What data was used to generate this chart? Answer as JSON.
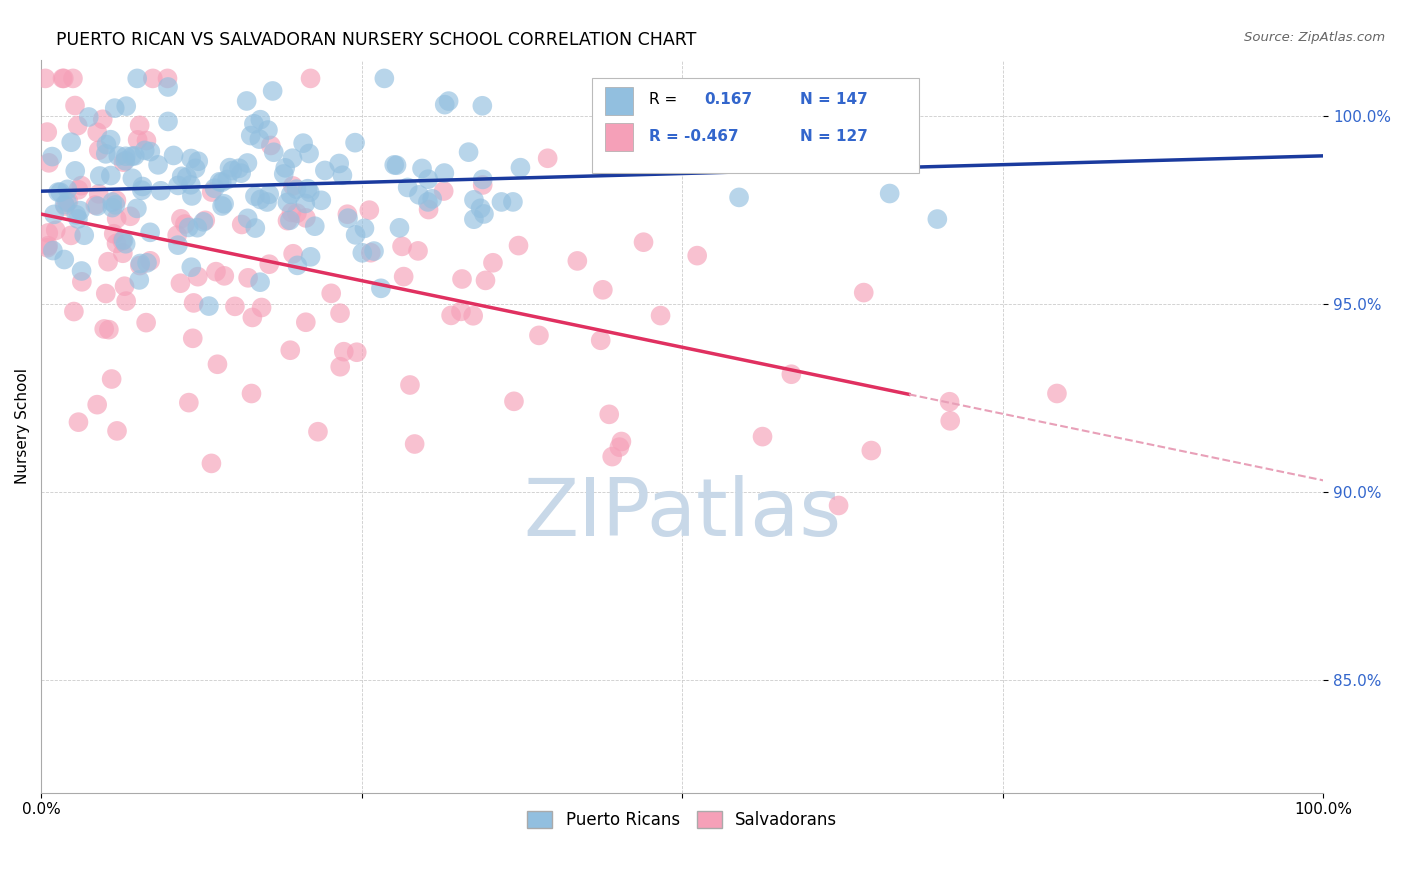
{
  "title": "PUERTO RICAN VS SALVADORAN NURSERY SCHOOL CORRELATION CHART",
  "source": "Source: ZipAtlas.com",
  "ylabel": "Nursery School",
  "legend_label1": "Puerto Ricans",
  "legend_label2": "Salvadorans",
  "r_puerto": 0.167,
  "n_puerto": 147,
  "r_salvadoran": -0.467,
  "n_salvadoran": 127,
  "color_blue": "#92bfdf",
  "color_pink": "#f5a0b8",
  "color_line_blue": "#1a3a9e",
  "color_line_pink": "#e03060",
  "color_line_pink_dashed": "#e8a0b8",
  "color_axis_blue": "#3366cc",
  "watermark_color": "#c8d8e8",
  "xmin": 0.0,
  "xmax": 1.0,
  "ymin": 0.82,
  "ymax": 1.015,
  "yticks": [
    0.85,
    0.9,
    0.95,
    1.0
  ],
  "ytick_labels": [
    "85.0%",
    "90.0%",
    "95.0%",
    "100.0%"
  ],
  "seed": 42
}
